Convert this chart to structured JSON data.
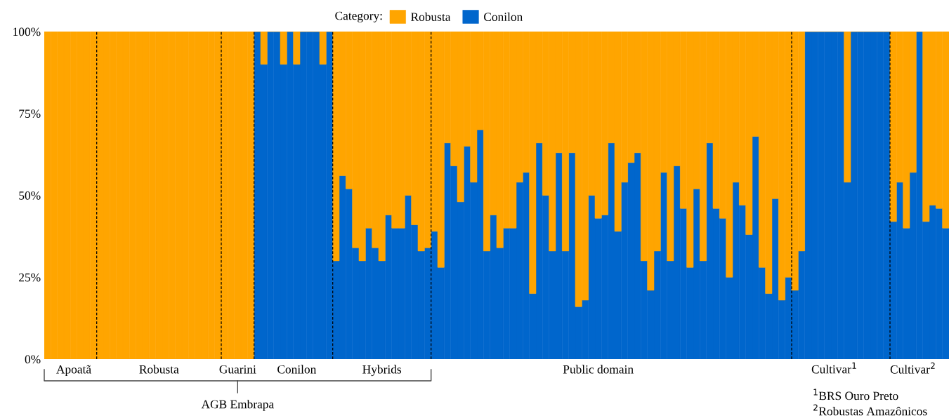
{
  "chart_data": {
    "type": "bar",
    "stacked": true,
    "legend_title": "Category:",
    "legend": "top",
    "categories": [
      null,
      null,
      null,
      null,
      "Apoatã",
      null,
      null,
      null,
      null,
      null,
      null,
      null,
      null,
      null,
      null,
      null,
      null,
      "Robusta",
      null,
      null,
      null,
      null,
      null,
      null,
      null,
      null,
      null,
      null,
      null,
      "Guarini",
      null,
      null,
      null,
      null,
      null,
      null,
      null,
      null,
      "Conilon",
      null,
      null,
      null,
      null,
      null,
      null,
      null,
      null,
      null,
      null,
      null,
      null,
      "Hybrids",
      null,
      null,
      null,
      null,
      null,
      null,
      null,
      null,
      null,
      null,
      null,
      null,
      null,
      null,
      null,
      null,
      null,
      null,
      null,
      null,
      null,
      null,
      null,
      null,
      null,
      null,
      null,
      null,
      null,
      null,
      null,
      null,
      "Public domain",
      null,
      null,
      null,
      null,
      null,
      null,
      null,
      null,
      null,
      null,
      null,
      null,
      null,
      null,
      null,
      null,
      null,
      null,
      null,
      null,
      null,
      null,
      null,
      null,
      null,
      null,
      null,
      null,
      null,
      null,
      null,
      null,
      null,
      null,
      null,
      "Cultivar$^{1}$",
      null,
      null,
      null,
      null,
      null,
      null,
      null,
      null,
      null,
      null,
      null,
      "Cultivar$^{2}$",
      null,
      null,
      null,
      null,
      null
    ],
    "ylim": [
      0,
      100
    ],
    "yticks": [
      {
        "value": 0,
        "label": "0%"
      },
      {
        "value": 25,
        "label": "25%"
      },
      {
        "value": 50,
        "label": "50%"
      },
      {
        "value": 75,
        "label": "75%"
      },
      {
        "value": 100,
        "label": "100%"
      }
    ],
    "grid": false,
    "series": [
      {
        "name": "Conilon",
        "color": "#0066cc",
        "values": [
          0,
          0,
          0,
          0,
          0,
          0,
          0,
          0,
          0,
          0,
          0,
          0,
          0,
          0,
          0,
          0,
          0,
          0,
          0,
          0,
          0,
          0,
          0,
          0,
          0,
          0,
          0,
          0,
          0,
          0,
          0,
          0,
          100,
          90,
          100,
          100,
          90,
          100,
          90,
          100,
          100,
          100,
          90,
          100,
          30,
          56,
          52,
          34,
          30,
          40,
          34,
          30,
          44,
          40,
          40,
          50,
          41,
          33,
          34,
          39,
          28,
          66,
          59,
          48,
          65,
          54,
          70,
          33,
          44,
          34,
          40,
          40,
          54,
          57,
          20,
          66,
          50,
          33,
          63,
          33,
          63,
          16,
          18,
          50,
          43,
          44,
          66,
          39,
          54,
          60,
          63,
          30,
          21,
          33,
          57,
          30,
          59,
          46,
          28,
          52,
          30,
          66,
          46,
          43,
          25,
          54,
          47,
          38,
          68,
          28,
          20,
          49,
          18,
          25,
          21,
          33,
          100,
          100,
          100,
          100,
          100,
          100,
          54,
          100,
          100,
          100,
          100,
          100,
          100,
          42,
          54,
          40,
          57,
          100,
          42,
          47,
          46,
          40
        ]
      },
      {
        "name": "Robusta",
        "color": "#ffa500",
        "values": [
          100,
          100,
          100,
          100,
          100,
          100,
          100,
          100,
          100,
          100,
          100,
          100,
          100,
          100,
          100,
          100,
          100,
          100,
          100,
          100,
          100,
          100,
          100,
          100,
          100,
          100,
          100,
          100,
          100,
          100,
          100,
          100,
          0,
          10,
          0,
          0,
          10,
          0,
          10,
          0,
          0,
          0,
          10,
          0,
          70,
          44,
          48,
          66,
          70,
          60,
          66,
          70,
          56,
          60,
          60,
          50,
          59,
          67,
          66,
          61,
          72,
          34,
          41,
          52,
          35,
          46,
          30,
          67,
          56,
          66,
          60,
          60,
          46,
          43,
          80,
          34,
          50,
          67,
          37,
          67,
          37,
          84,
          82,
          50,
          57,
          56,
          34,
          61,
          46,
          40,
          37,
          70,
          79,
          67,
          43,
          70,
          41,
          54,
          72,
          48,
          70,
          34,
          54,
          57,
          75,
          46,
          53,
          62,
          32,
          72,
          80,
          51,
          82,
          75,
          79,
          67,
          0,
          0,
          0,
          0,
          0,
          0,
          46,
          0,
          0,
          0,
          0,
          0,
          0,
          58,
          46,
          60,
          43,
          0,
          58,
          53,
          54,
          60
        ]
      }
    ],
    "annotations": [
      "AGB Embrapa",
      "$^{1}$BRS Ouro Preto",
      "$^{2}$Robustas Amazônicos"
    ]
  }
}
